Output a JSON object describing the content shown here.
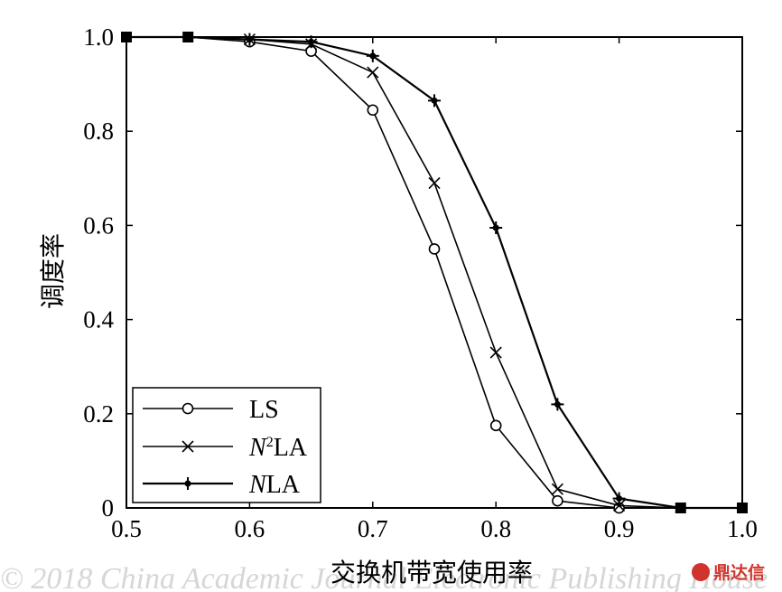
{
  "chart_data": {
    "type": "line",
    "xlabel": "交换机带宽使用率",
    "ylabel": "调度率",
    "xlim": [
      0.5,
      1.0
    ],
    "ylim": [
      0,
      1.0
    ],
    "xticks": [
      {
        "value": 0.5,
        "label": "0.5"
      },
      {
        "value": 0.6,
        "label": "0.6"
      },
      {
        "value": 0.7,
        "label": "0.7"
      },
      {
        "value": 0.8,
        "label": "0.8"
      },
      {
        "value": 0.9,
        "label": "0.9"
      },
      {
        "value": 1.0,
        "label": "1.0"
      }
    ],
    "yticks": [
      {
        "value": 0,
        "label": "0"
      },
      {
        "value": 0.2,
        "label": "0.2"
      },
      {
        "value": 0.4,
        "label": "0.4"
      },
      {
        "value": 0.6,
        "label": "0.6"
      },
      {
        "value": 0.8,
        "label": "0.8"
      },
      {
        "value": 1.0,
        "label": "1.0"
      }
    ],
    "grid": false,
    "legend_position": "bottom-left",
    "series": [
      {
        "name": "LS",
        "marker": "circle",
        "x": [
          0.5,
          0.55,
          0.6,
          0.65,
          0.7,
          0.75,
          0.8,
          0.85,
          0.9,
          0.95,
          1.0
        ],
        "y": [
          1.0,
          1.0,
          0.99,
          0.97,
          0.845,
          0.55,
          0.175,
          0.015,
          0.0,
          0.0,
          0.0
        ]
      },
      {
        "name": "N²LA",
        "marker": "x",
        "x": [
          0.5,
          0.55,
          0.6,
          0.65,
          0.7,
          0.75,
          0.8,
          0.85,
          0.9,
          0.95,
          1.0
        ],
        "y": [
          1.0,
          1.0,
          0.995,
          0.985,
          0.925,
          0.69,
          0.33,
          0.04,
          0.005,
          0.0,
          0.0
        ]
      },
      {
        "name": "NLA",
        "marker": "plus-dot",
        "x": [
          0.5,
          0.55,
          0.6,
          0.65,
          0.7,
          0.75,
          0.8,
          0.85,
          0.9,
          0.95,
          1.0
        ],
        "y": [
          1.0,
          1.0,
          0.995,
          0.99,
          0.96,
          0.865,
          0.595,
          0.22,
          0.02,
          0.0,
          0.0
        ]
      }
    ],
    "legend": [
      {
        "prefix": "",
        "super": "",
        "rest": "LS"
      },
      {
        "prefix": "N",
        "super": "2",
        "rest": "LA"
      },
      {
        "prefix": "N",
        "super": "",
        "rest": "LA"
      }
    ]
  },
  "watermark": {
    "logo_text": "鼎达信"
  }
}
